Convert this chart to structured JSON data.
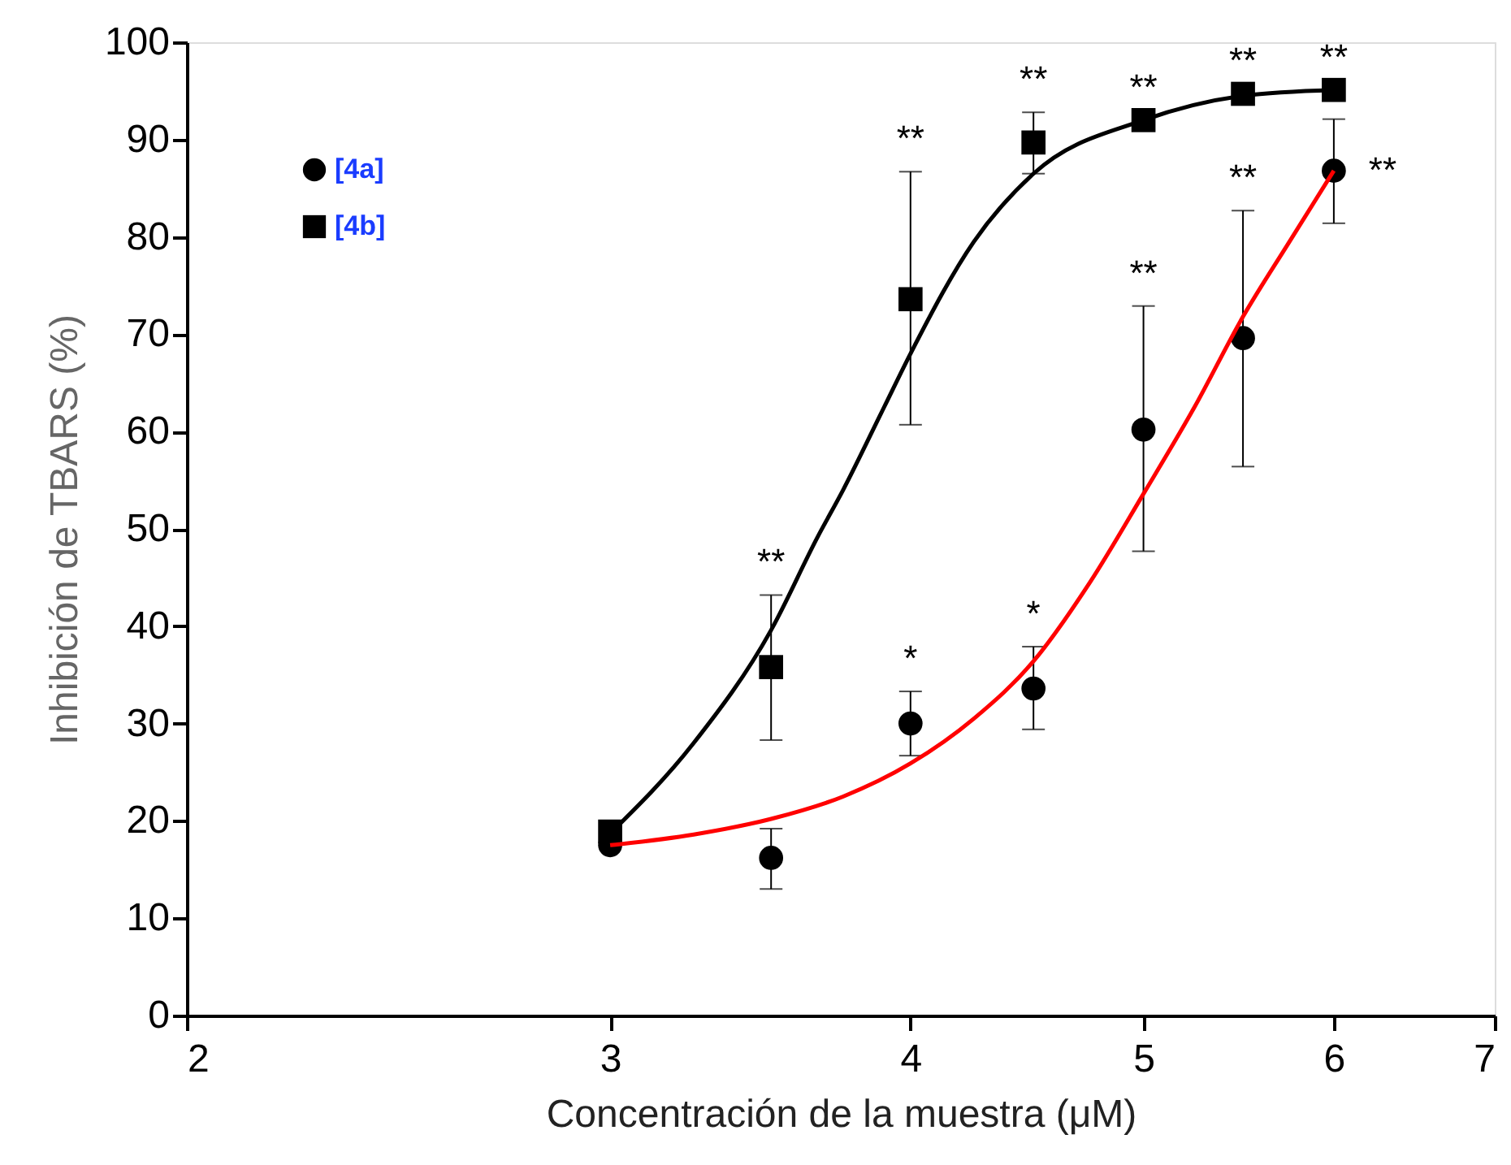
{
  "chart_data": {
    "type": "scatter",
    "xlabel": "Concentración de la muestra (μM)",
    "ylabel": "Inhibición de TBARS (%)",
    "xlim": [
      2,
      7
    ],
    "xticks": [
      2,
      3,
      4,
      5,
      6,
      7
    ],
    "ylim": [
      0,
      100
    ],
    "yticks": [
      0,
      10,
      20,
      30,
      40,
      50,
      60,
      70,
      80,
      90,
      100
    ],
    "log": "x",
    "grid": false,
    "legend": "top left",
    "series": [
      {
        "name": "[4a]",
        "marker": "circle",
        "color": "#000000",
        "x": [
          3,
          3.5,
          4,
          4.5,
          5,
          5.5,
          6
        ],
        "values": [
          17.5,
          16.2,
          30.0,
          33.6,
          60.2,
          69.6,
          86.8
        ],
        "errors": [
          null,
          [
            13.0,
            19.2
          ],
          [
            26.7,
            33.3
          ],
          [
            29.4,
            37.9
          ],
          [
            47.7,
            72.9
          ],
          [
            56.4,
            82.7
          ],
          [
            81.4,
            92.1
          ]
        ]
      },
      {
        "name": "[4b]",
        "marker": "square",
        "color": "#000000",
        "x": [
          3,
          3.5,
          4,
          4.5,
          5,
          5.5,
          6
        ],
        "values": [
          18.9,
          35.8,
          73.6,
          89.7,
          92.0,
          94.7,
          95.1
        ],
        "errors": [
          null,
          [
            28.3,
            43.2
          ],
          [
            60.7,
            86.7
          ],
          [
            86.5,
            92.8
          ],
          null,
          null,
          null
        ]
      },
      {
        "type": "line",
        "marker": "none",
        "line_style": "solid",
        "color": "#ff0000",
        "x": [
          3,
          3.25,
          3.5,
          3.75,
          4,
          4.25,
          4.5,
          4.75,
          5,
          5.25,
          5.5,
          5.75,
          6
        ],
        "values": [
          17.5,
          18.6,
          20.2,
          22.5,
          25.9,
          30.5,
          36.4,
          44.5,
          53.6,
          62.5,
          71.8,
          79.5,
          86.8
        ]
      },
      {
        "type": "line",
        "marker": "none",
        "color": "#000000",
        "line_style": "solid",
        "x": [
          3,
          3.25,
          3.5,
          3.66,
          3.75,
          3.9,
          4,
          4.25,
          4.5,
          5,
          5.5,
          6
        ],
        "values": [
          18.7,
          28.0,
          39.6,
          49.2,
          54.0,
          62.5,
          68.0,
          79.5,
          86.5,
          92.0,
          94.5,
          95.1
        ]
      }
    ],
    "annotations": [
      {
        "text": "**",
        "x": 3.5,
        "y": 35.8
      },
      {
        "text": "**",
        "x": 4,
        "y": 86.7
      },
      {
        "text": "**",
        "x": 4.5,
        "y": 89.7
      },
      {
        "text": "**",
        "x": 5,
        "y": 92.0
      },
      {
        "text": "**",
        "x": 5.5,
        "y": 94.7
      },
      {
        "text": "**",
        "x": 6,
        "y": 95.1
      },
      {
        "text": "*",
        "x": 4,
        "y": 30.0
      },
      {
        "text": "*",
        "x": 4.5,
        "y": 33.6
      },
      {
        "text": "**",
        "x": 5,
        "y": 72.9
      },
      {
        "text": "**",
        "x": 5.5,
        "y": 82.7
      },
      {
        "text": "**",
        "x": 6,
        "y": 86.8
      }
    ]
  }
}
